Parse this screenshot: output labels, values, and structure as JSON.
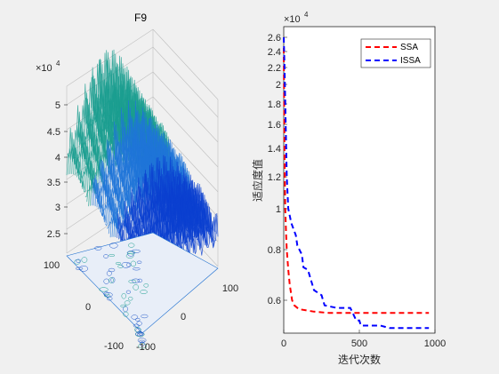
{
  "chart_data": [
    {
      "type": "surface3d",
      "title": "F9",
      "zlabel_exponent": "×10",
      "zlabel_exponent_power": "4",
      "z_ticks": [
        "2.5",
        "3",
        "3.5",
        "4",
        "4.5",
        "5"
      ],
      "x_ticks": [
        "100",
        "0",
        "-100"
      ],
      "y_ticks": [
        "100",
        "0",
        "-100"
      ],
      "colormap": [
        "#1a9e8f",
        "#1e74d8",
        "#0a3fd0"
      ]
    },
    {
      "type": "line",
      "xlabel": "迭代次数",
      "ylabel": "适应度值",
      "y_exponent": "×10",
      "y_exponent_power": "4",
      "x_ticks": [
        "0",
        "500",
        "1000"
      ],
      "y_ticks": [
        "0.6",
        "0.8",
        "1",
        "1.2",
        "1.4",
        "1.6",
        "1.8",
        "2",
        "2.2",
        "2.4",
        "2.6"
      ],
      "xlim": [
        0,
        1000
      ],
      "legend_position": "top-right",
      "series": [
        {
          "name": "SSA",
          "color": "#ff0000",
          "x": [
            0,
            5,
            10,
            15,
            20,
            30,
            40,
            55,
            70,
            100,
            150,
            200,
            300,
            400,
            500,
            600,
            700,
            800,
            900,
            960
          ],
          "y": [
            2.45,
            1.35,
            1.0,
            0.88,
            0.8,
            0.72,
            0.66,
            0.6,
            0.58,
            0.565,
            0.56,
            0.555,
            0.55,
            0.55,
            0.55,
            0.55,
            0.55,
            0.55,
            0.55,
            0.55
          ]
        },
        {
          "name": "ISSA",
          "color": "#0000ff",
          "x": [
            0,
            5,
            10,
            20,
            30,
            50,
            80,
            90,
            120,
            130,
            160,
            180,
            200,
            250,
            270,
            350,
            440,
            480,
            500,
            510,
            550,
            640,
            700,
            800,
            900,
            960
          ],
          "y": [
            2.65,
            2.2,
            1.8,
            1.2,
            1.0,
            0.93,
            0.87,
            0.82,
            0.78,
            0.73,
            0.72,
            0.68,
            0.64,
            0.62,
            0.58,
            0.57,
            0.57,
            0.52,
            0.52,
            0.5,
            0.5,
            0.5,
            0.49,
            0.49,
            0.49,
            0.49
          ]
        }
      ]
    }
  ]
}
